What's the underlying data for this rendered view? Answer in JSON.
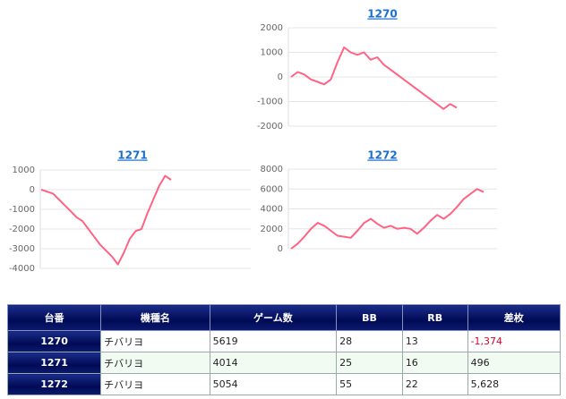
{
  "chart_data": [
    {
      "type": "line",
      "title": "1270",
      "ylim": [
        -2000,
        2000
      ],
      "yticks": [
        2000,
        1000,
        0,
        -1000,
        -2000
      ],
      "grid": true,
      "series": [
        {
          "color": "#ff6384",
          "values": [
            0,
            200,
            100,
            -100,
            -200,
            -300,
            -100,
            600,
            1200,
            1000,
            900,
            1000,
            700,
            800,
            500,
            300,
            100,
            -100,
            -300,
            -500,
            -700,
            -900,
            -1100,
            -1300,
            -1100,
            -1250
          ]
        }
      ]
    },
    {
      "type": "line",
      "title": "1271",
      "ylim": [
        -4000,
        1000
      ],
      "yticks": [
        1000,
        0,
        -1000,
        -2000,
        -3000,
        -4000
      ],
      "grid": true,
      "series": [
        {
          "color": "#ff6384",
          "values": [
            0,
            -100,
            -200,
            -500,
            -800,
            -1100,
            -1400,
            -1600,
            -2000,
            -2400,
            -2800,
            -3100,
            -3400,
            -3800,
            -3200,
            -2500,
            -2100,
            -2000,
            -1200,
            -500,
            200,
            700,
            500
          ]
        }
      ]
    },
    {
      "type": "line",
      "title": "1272",
      "ylim": [
        0,
        8000
      ],
      "yticks": [
        8000,
        6000,
        4000,
        2000,
        0
      ],
      "grid": true,
      "series": [
        {
          "color": "#ff6384",
          "values": [
            0,
            500,
            1200,
            2000,
            2600,
            2300,
            1800,
            1300,
            1200,
            1100,
            1800,
            2600,
            3000,
            2500,
            2100,
            2300,
            2000,
            2100,
            2000,
            1500,
            2100,
            2800,
            3400,
            3000,
            3500,
            4200,
            5000,
            5500,
            6000,
            5700
          ]
        }
      ]
    }
  ],
  "table": {
    "header": [
      "台番",
      "機種名",
      "ゲーム数",
      "BB",
      "RB",
      "差枚"
    ],
    "rows": [
      [
        "1270",
        "チバリヨ",
        "5619",
        "28",
        "13",
        "-1,374"
      ],
      [
        "1271",
        "チバリヨ",
        "4014",
        "25",
        "16",
        "496"
      ],
      [
        "1272",
        "チバリヨ",
        "5054",
        "55",
        "22",
        "5,628"
      ]
    ]
  }
}
